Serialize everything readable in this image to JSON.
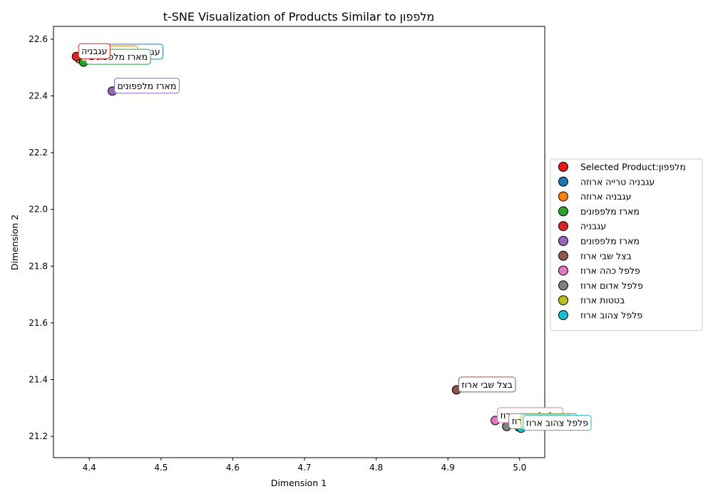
{
  "chart_data": {
    "type": "scatter",
    "title": "t-SNE Visualization of Products Similar to מלפפון",
    "xlabel": "Dimension 1",
    "ylabel": "Dimension 2",
    "xlim": [
      4.35,
      5.035
    ],
    "ylim": [
      21.125,
      22.645
    ],
    "xticks": [
      "4.4",
      "4.5",
      "4.6",
      "4.7",
      "4.8",
      "4.9",
      "5.0"
    ],
    "yticks": [
      "21.2",
      "21.4",
      "21.6",
      "21.8",
      "22.0",
      "22.2",
      "22.4",
      "22.6"
    ],
    "grid": false,
    "legend_position": "center-right",
    "series": [
      {
        "name": "Selected Product:מלפפון",
        "label": "מלפפון",
        "color": "#e41a1c",
        "x": 4.384,
        "y": 22.537
      },
      {
        "name": "עגבניה טרייה ארוזה",
        "label": "עגבניה טרייה ארוזה",
        "color": "#1f77b4",
        "x": 4.388,
        "y": 22.537
      },
      {
        "name": "עגבניה  ארוזה",
        "label": "עגבניה  ארוזה",
        "color": "#ff7f0e",
        "x": 4.386,
        "y": 22.531
      },
      {
        "name": "מארז מלפפונים",
        "label": "מארז מלפפונים",
        "color": "#2ca02c",
        "x": 4.392,
        "y": 22.519
      },
      {
        "name": "עגבניה",
        "label": "עגבניה",
        "color": "#d62728",
        "x": 4.382,
        "y": 22.539
      },
      {
        "name": "מארז מלפפונים",
        "label": "מארז מלפפונים",
        "color": "#9467bd",
        "x": 4.432,
        "y": 22.417
      },
      {
        "name": "בצל שבי ארוז",
        "label": "בצל שבי ארוז",
        "color": "#8c564b",
        "x": 4.912,
        "y": 21.364
      },
      {
        "name": "פלפל כהה ארוז",
        "label": "פלפל כהה ארוז",
        "color": "#e377c2",
        "x": 4.966,
        "y": 21.256
      },
      {
        "name": "פלפל אדום ארוז",
        "label": "פלפל אדום ארוז",
        "color": "#7f7f7f",
        "x": 4.982,
        "y": 21.235
      },
      {
        "name": "בטטות ארוז",
        "label": "בטטות ארוז",
        "color": "#bcbd22",
        "x": 4.999,
        "y": 21.233
      },
      {
        "name": "פלפל צהוב ארוז",
        "label": "פלפל צהוב ארוז",
        "color": "#17becf",
        "x": 5.002,
        "y": 21.229
      }
    ]
  }
}
